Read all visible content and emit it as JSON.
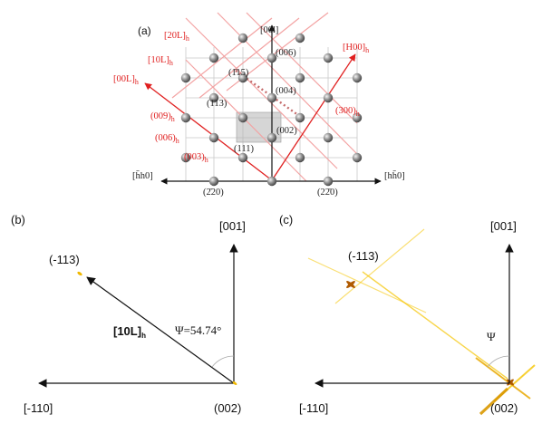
{
  "colors": {
    "red": "#e02020",
    "pink": "#f3a3a3",
    "grid": "#c8c8c8",
    "black": "#111111",
    "sphere": "#8a8a8a",
    "gold": "#f0b800",
    "dark_gold": "#b06000"
  },
  "panel_a": {
    "letter": "(a)",
    "axis_top": "[00l]",
    "axis_left": "[h̄h0]",
    "axis_right": "[hh̄0]",
    "red_labels": {
      "h00": "[H00]h",
      "l00": "[00L]h",
      "l10": "[10L]h",
      "l20": "[20L]h",
      "p009": "(009)h",
      "p006": "(006)h",
      "p003": "(003)h",
      "p300": "(300)h"
    },
    "black_labels": {
      "p006": "(006)",
      "p004": "(004)",
      "p002": "(002)",
      "m115": "(1̄15)",
      "m113": "(1̄13)",
      "m111": "(111)",
      "m220l": "(2̄20)",
      "m220r": "(22̄0)"
    }
  },
  "panel_b": {
    "letter": "(b)",
    "top": "[001]",
    "left": "[-110]",
    "upper": "(-113)",
    "origin": "(002)",
    "vector": "[10L]h",
    "angle": "Ψ=54.74°"
  },
  "panel_c": {
    "letter": "(c)",
    "top": "[001]",
    "left": "[-110]",
    "upper": "(-113)",
    "origin": "(002)",
    "angle": "Ψ"
  }
}
